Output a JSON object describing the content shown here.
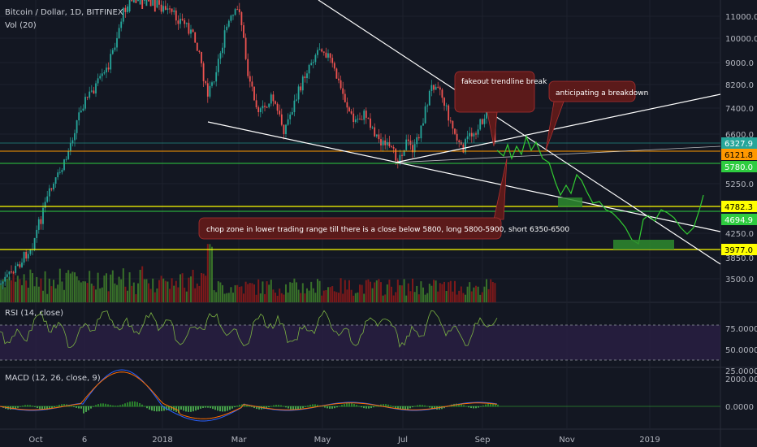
{
  "chart_data": {
    "type": "candlestick",
    "title": "Bitcoin / Dollar, 1D, BITFINEX",
    "volume_label": "Vol (20)",
    "x_ticks": [
      "Oct",
      "6",
      "2018",
      "Mar",
      "May",
      "Jul",
      "Sep",
      "Nov",
      "2019"
    ],
    "y_ticks": [
      "11000.0",
      "10000.0",
      "9000.0",
      "8200.0",
      "7400.0",
      "6600.0",
      "5250.0",
      "4250.0",
      "3850.0",
      "3500.0"
    ],
    "price_labels": [
      {
        "value": "6327.9",
        "color": "#26a69a"
      },
      {
        "value": "6121.8",
        "color": "#ff9800"
      },
      {
        "value": "5780.0",
        "color": "#2ecc40"
      },
      {
        "value": "4782.3",
        "color": "#ffff00"
      },
      {
        "value": "4694.9",
        "color": "#2ecc40"
      },
      {
        "value": "3977.0",
        "color": "#ffff00"
      }
    ],
    "annotations": [
      "fakeout trendline break",
      "anticipating a breakdown",
      "chop zone in lower trading range till there is a close below 5800, long 5800-5900, short 6350-6500"
    ],
    "rsi": {
      "label": "RSI (14, close)",
      "ticks": [
        "75.0000",
        "50.0000",
        "25.0000"
      ]
    },
    "macd": {
      "label": "MACD (12, 26, close, 9)",
      "ticks": [
        "2000.0000",
        "0.0000"
      ]
    },
    "colors": {
      "up": "#26a69a",
      "down": "#ef5350",
      "projection": "#32cd32",
      "trendline": "#ffffff",
      "support": "#ffff00"
    }
  }
}
